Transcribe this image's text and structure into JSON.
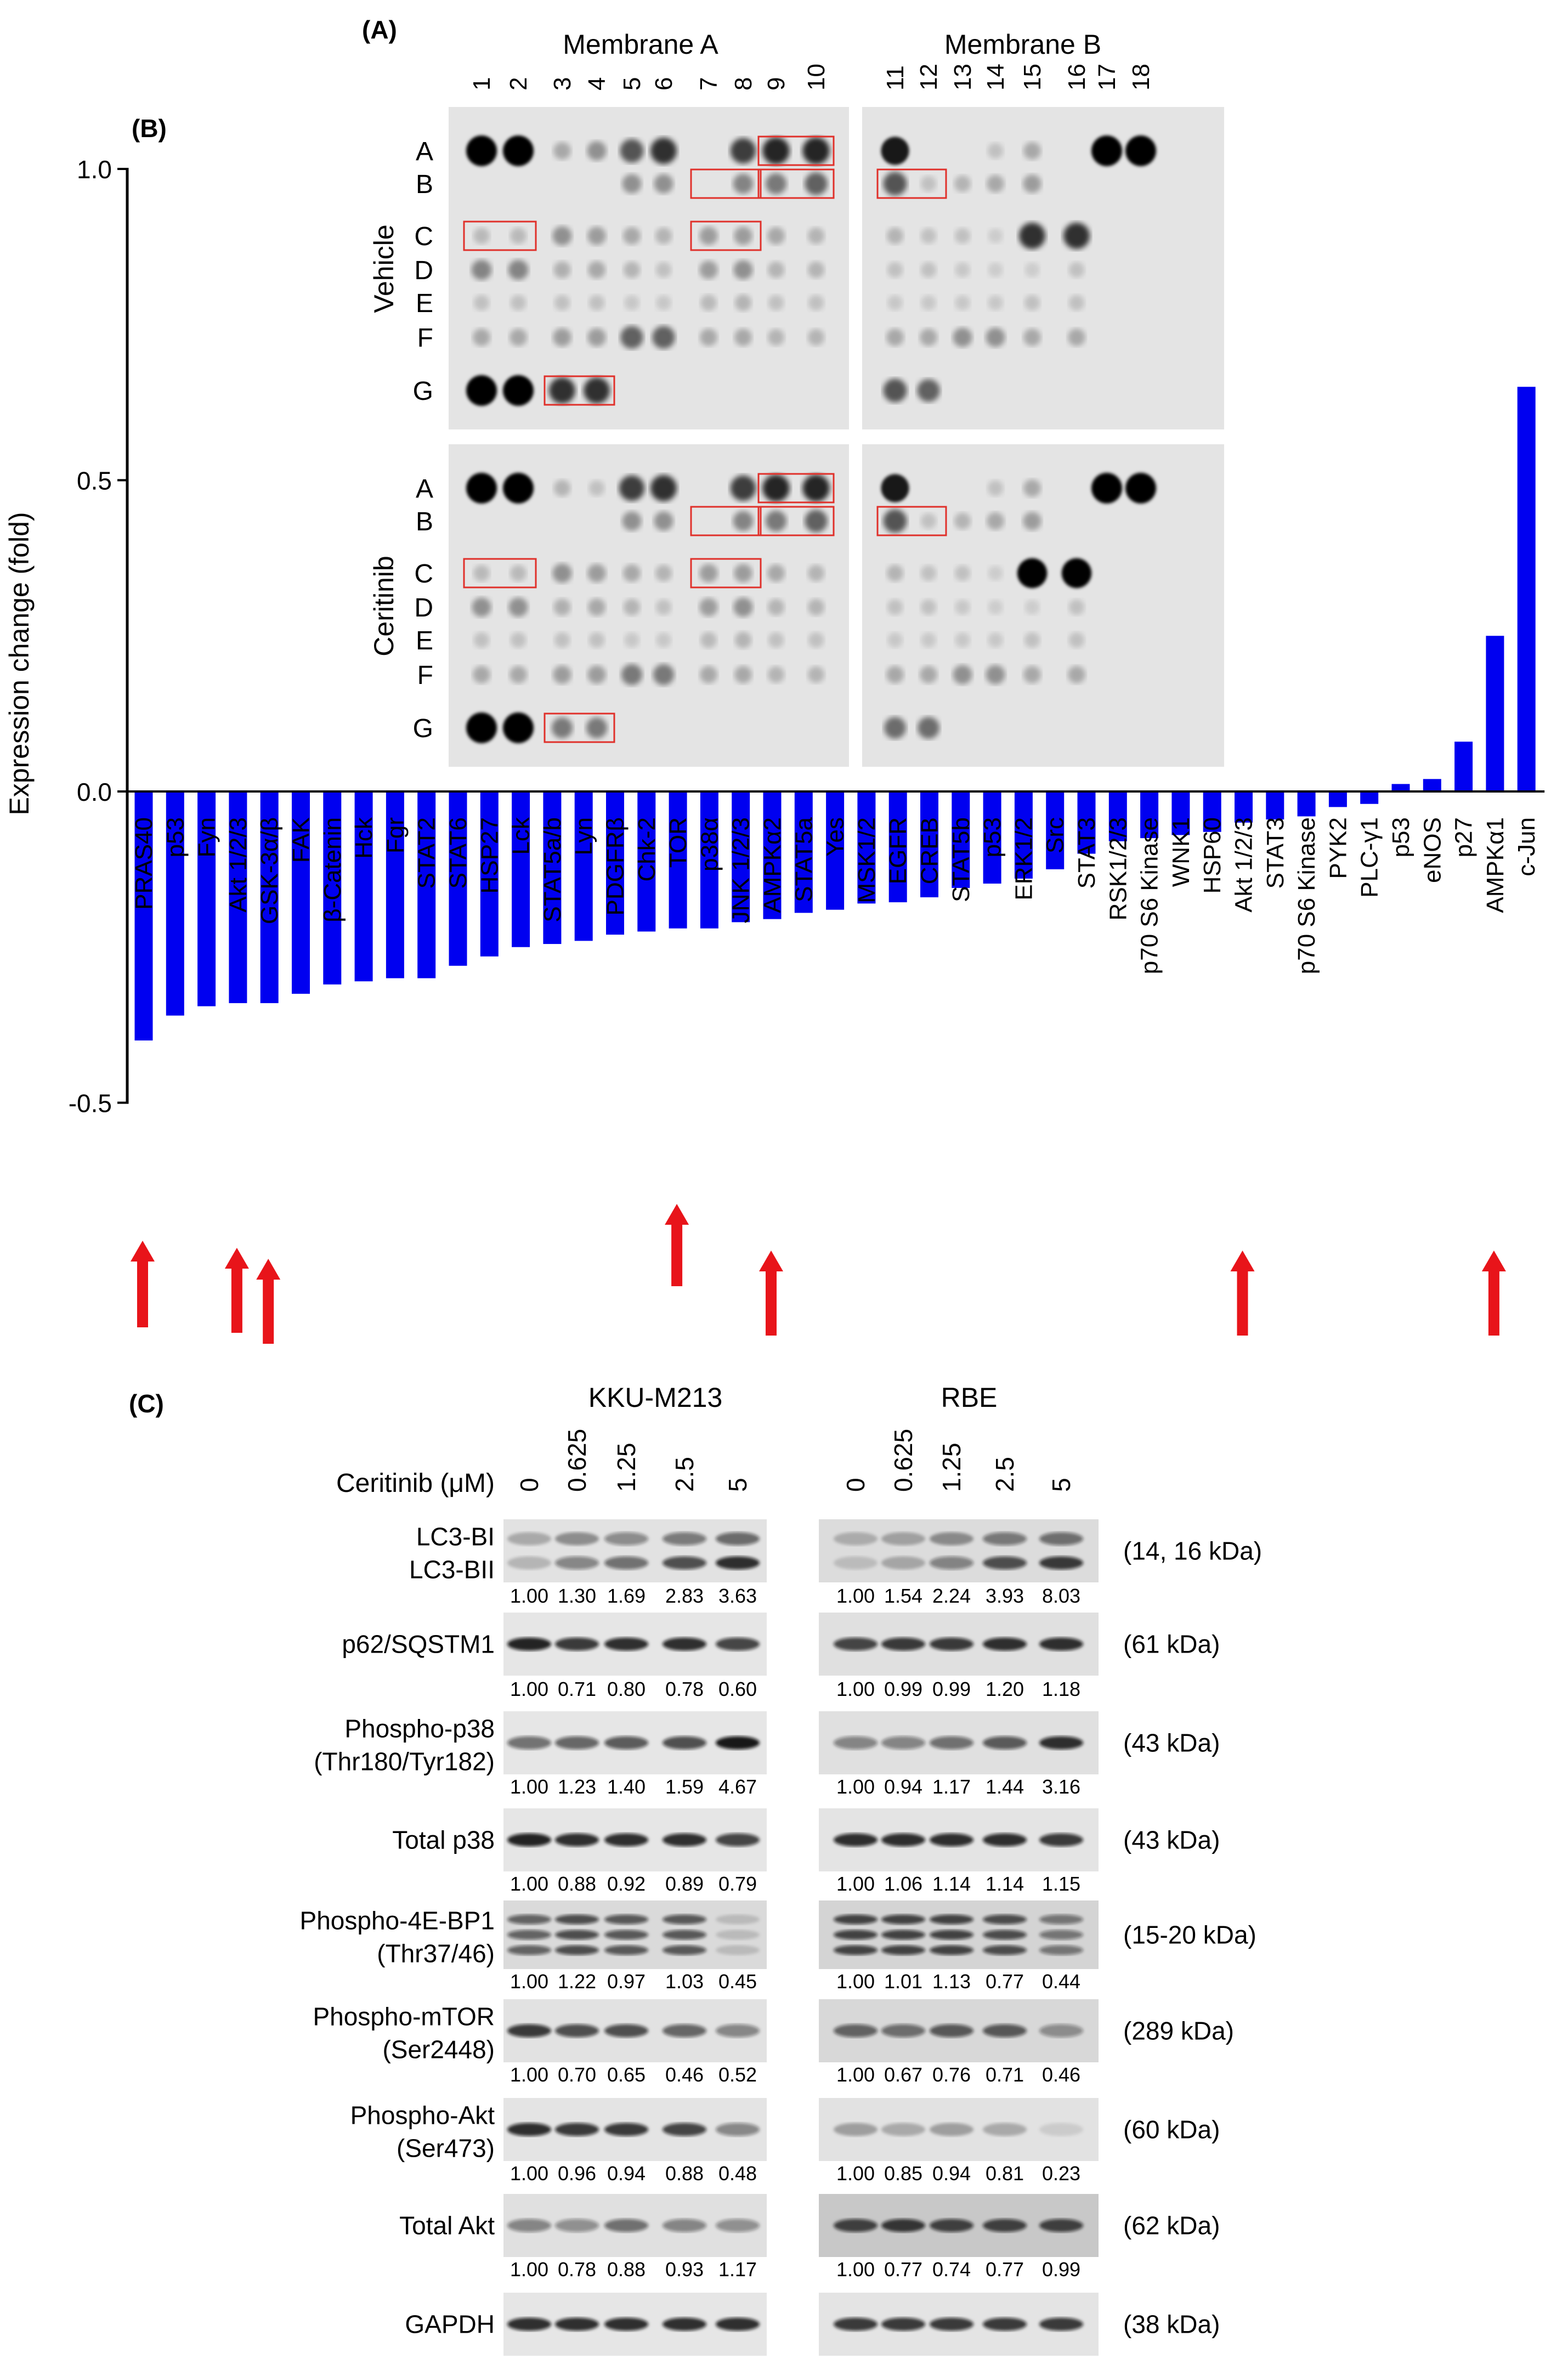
{
  "panels": {
    "a_label": "(A)",
    "b_label": "(B)",
    "c_label": "(C)"
  },
  "panel_a": {
    "membrane_a_title": "Membrane A",
    "membrane_b_title": "Membrane B",
    "column_numbers": [
      "1",
      "2",
      "3",
      "4",
      "5",
      "6",
      "7",
      "8",
      "9",
      "10",
      "11",
      "12",
      "13",
      "14",
      "15",
      "16",
      "17",
      "18"
    ],
    "row_letters": [
      "A",
      "B",
      "C",
      "D",
      "E",
      "F",
      "G"
    ],
    "treatments": [
      "Vehicle",
      "Ceritinib"
    ],
    "highlight_color": "#e0302a"
  },
  "chart_data": {
    "type": "bar",
    "title": "",
    "xlabel": "",
    "ylabel": "Expression change (fold)",
    "ylim": [
      -0.5,
      1.0
    ],
    "yticks": [
      "1.0",
      "0.5",
      "0.0",
      "-0.5"
    ],
    "bar_color": "#0000f0",
    "arrow_color": "#e8141a",
    "categories": [
      "PRAS40",
      "p53",
      "Fyn",
      "Akt 1/2/3",
      "GSK-3α/β",
      "FAK",
      "β-Catenin",
      "Hck",
      "Fgr",
      "STAT2",
      "STAT6",
      "HSP27",
      "Lck",
      "STAT5a/b",
      "Lyn",
      "PDGFRβ",
      "Chk-2",
      "TOR",
      "p38α",
      "JNK 1/2/3",
      "AMPKα2",
      "STAT5a",
      "Yes",
      "MSK1/2",
      "EGFR",
      "CREB",
      "STAT5b",
      "p53",
      "ERK1/2",
      "Src",
      "STAT3",
      "RSK1/2/3",
      "p70 S6 Kinase",
      "WNK1",
      "HSP60",
      "Akt 1/2/3",
      "STAT3",
      "p70 S6 Kinase",
      "PYK2",
      "PLC-γ1",
      "p53",
      "eNOS",
      "p27",
      "AMPKα1",
      "c-Jun"
    ],
    "values": [
      -0.4,
      -0.36,
      -0.345,
      -0.34,
      -0.34,
      -0.325,
      -0.31,
      -0.305,
      -0.3,
      -0.3,
      -0.28,
      -0.265,
      -0.25,
      -0.245,
      -0.24,
      -0.23,
      -0.225,
      -0.22,
      -0.22,
      -0.21,
      -0.205,
      -0.195,
      -0.19,
      -0.18,
      -0.178,
      -0.17,
      -0.155,
      -0.148,
      -0.14,
      -0.125,
      -0.1,
      -0.08,
      -0.075,
      -0.07,
      -0.065,
      -0.05,
      -0.045,
      -0.04,
      -0.025,
      -0.02,
      0.012,
      0.02,
      0.08,
      0.25,
      0.65
    ],
    "arrows_under": [
      "PRAS40",
      "Akt 1/2/3",
      "GSK-3α/β",
      "TOR",
      "AMPKα2",
      "Akt 1/2/3",
      "AMPKα1"
    ]
  },
  "panel_c": {
    "cell_lines": [
      "KKU-M213",
      "RBE"
    ],
    "treatment_label": "Ceritinib (μM)",
    "concentrations": [
      "0",
      "0.625",
      "1.25",
      "2.5",
      "5"
    ],
    "blots": [
      {
        "label": [
          "LC3-BI",
          "LC3-BII"
        ],
        "mw": "(14, 16 kDa)",
        "kku": [
          "1.00",
          "1.30",
          "1.69",
          "2.83",
          "3.63"
        ],
        "rbe": [
          "1.00",
          "1.54",
          "2.24",
          "3.93",
          "8.03"
        ]
      },
      {
        "label": [
          "p62/SQSTM1"
        ],
        "mw": "(61 kDa)",
        "kku": [
          "1.00",
          "0.71",
          "0.80",
          "0.78",
          "0.60"
        ],
        "rbe": [
          "1.00",
          "0.99",
          "0.99",
          "1.20",
          "1.18"
        ]
      },
      {
        "label": [
          "Phospho-p38",
          "(Thr180/Tyr182)"
        ],
        "mw": "(43 kDa)",
        "kku": [
          "1.00",
          "1.23",
          "1.40",
          "1.59",
          "4.67"
        ],
        "rbe": [
          "1.00",
          "0.94",
          "1.17",
          "1.44",
          "3.16"
        ]
      },
      {
        "label": [
          "Total p38"
        ],
        "mw": "(43 kDa)",
        "kku": [
          "1.00",
          "0.88",
          "0.92",
          "0.89",
          "0.79"
        ],
        "rbe": [
          "1.00",
          "1.06",
          "1.14",
          "1.14",
          "1.15"
        ]
      },
      {
        "label": [
          "Phospho-4E-BP1",
          "(Thr37/46)"
        ],
        "mw": "(15-20 kDa)",
        "kku": [
          "1.00",
          "1.22",
          "0.97",
          "1.03",
          "0.45"
        ],
        "rbe": [
          "1.00",
          "1.01",
          "1.13",
          "0.77",
          "0.44"
        ]
      },
      {
        "label": [
          "Phospho-mTOR",
          "(Ser2448)"
        ],
        "mw": "(289 kDa)",
        "kku": [
          "1.00",
          "0.70",
          "0.65",
          "0.46",
          "0.52"
        ],
        "rbe": [
          "1.00",
          "0.67",
          "0.76",
          "0.71",
          "0.46"
        ]
      },
      {
        "label": [
          "Phospho-Akt",
          "(Ser473)"
        ],
        "mw": "(60 kDa)",
        "kku": [
          "1.00",
          "0.96",
          "0.94",
          "0.88",
          "0.48"
        ],
        "rbe": [
          "1.00",
          "0.85",
          "0.94",
          "0.81",
          "0.23"
        ]
      },
      {
        "label": [
          "Total Akt"
        ],
        "mw": "(62 kDa)",
        "kku": [
          "1.00",
          "0.78",
          "0.88",
          "0.93",
          "1.17"
        ],
        "rbe": [
          "1.00",
          "0.77",
          "0.74",
          "0.77",
          "0.99"
        ]
      },
      {
        "label": [
          "GAPDH"
        ],
        "mw": "(38 kDa)",
        "kku": [],
        "rbe": []
      }
    ]
  }
}
